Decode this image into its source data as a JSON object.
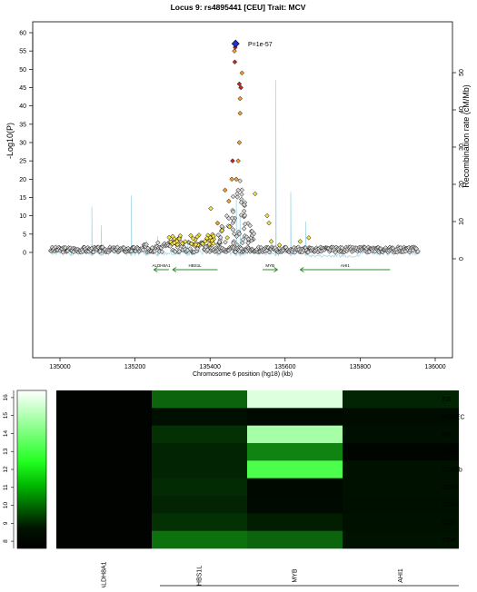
{
  "chart_data": [
    {
      "type": "scatter",
      "title": "Locus 9: rs4895441 [CEU] Trait: MCV",
      "xlabel": "Chromosome 6 position (hg18) (kb)",
      "ylabel": "-Log10(P)",
      "y2label": "Recombination rate (cM/Mb)",
      "xlim": [
        135950,
        136010
      ],
      "ylim": [
        -25,
        62
      ],
      "y2lim": [
        -9.8,
        55
      ],
      "x_ticks": [
        "135000",
        "135200",
        "135400",
        "135600",
        "135800",
        "136000"
      ],
      "y_ticks": [
        "0",
        "5",
        "10",
        "15",
        "20",
        "25",
        "30",
        "35",
        "40",
        "45",
        "50",
        "55",
        "60"
      ],
      "y2_ticks": [
        "0",
        "10",
        "20",
        "30",
        "40",
        "50"
      ],
      "annotation": "P=1e-57",
      "top_snp": {
        "x": 135468,
        "y": 57
      },
      "colors": {
        "high_ld": "#c62828",
        "mid_ld": "#f0a030",
        "low_ld": "#f5e04a",
        "none": "#d8d8d8",
        "top": "#1f2fd0",
        "recomb": "#a6d9e6",
        "gene": "#2e8b2e"
      },
      "genes": [
        {
          "name": "ALDH8A1",
          "start": 135250,
          "end": 135290,
          "strand": "-"
        },
        {
          "name": "HBS1L",
          "start": 135300,
          "end": 135420,
          "strand": "-"
        },
        {
          "name": "MYB",
          "start": 135540,
          "end": 135580,
          "strand": "+"
        },
        {
          "name": "AHI1",
          "start": 135640,
          "end": 135880,
          "strand": "-"
        }
      ]
    },
    {
      "type": "heatmap",
      "columns": [
        "ALDH8A1",
        "HBS1L",
        "MYB",
        "AHI1"
      ],
      "rows": [
        "EB",
        "HUVEC",
        "MK",
        "CD14",
        "CD66b",
        "CD19",
        "CD56",
        "CD8",
        "CD4"
      ],
      "values": [
        [
          7.8,
          10.0,
          15.8,
          9.0
        ],
        [
          7.8,
          8.5,
          8.2,
          8.3
        ],
        [
          7.8,
          9.2,
          14.8,
          8.5
        ],
        [
          7.8,
          9.0,
          10.5,
          7.9
        ],
        [
          7.8,
          9.0,
          13.2,
          8.6
        ],
        [
          7.8,
          9.1,
          8.1,
          8.6
        ],
        [
          7.8,
          9.0,
          8.2,
          8.5
        ],
        [
          7.8,
          9.2,
          8.9,
          8.6
        ],
        [
          7.8,
          10.2,
          10.0,
          8.7
        ]
      ],
      "colorbar_ticks": [
        "8",
        "9",
        "10",
        "11",
        "12",
        "13",
        "14",
        "15",
        "16"
      ],
      "colorbar_range": [
        7.6,
        16.4
      ]
    }
  ]
}
